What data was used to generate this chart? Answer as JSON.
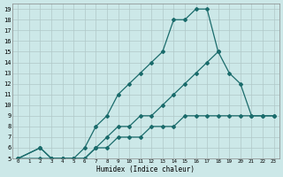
{
  "xlabel": "Humidex (Indice chaleur)",
  "bg_color": "#cce8e8",
  "grid_color": "#b0c8c8",
  "line_color": "#1a6b6b",
  "xlim": [
    -0.5,
    23.5
  ],
  "ylim": [
    5,
    19.5
  ],
  "xticks": [
    0,
    1,
    2,
    3,
    4,
    5,
    6,
    7,
    8,
    9,
    10,
    11,
    12,
    13,
    14,
    15,
    16,
    17,
    18,
    19,
    20,
    21,
    22,
    23
  ],
  "yticks": [
    5,
    6,
    7,
    8,
    9,
    10,
    11,
    12,
    13,
    14,
    15,
    16,
    17,
    18,
    19
  ],
  "lines": [
    {
      "x": [
        0,
        2,
        3,
        4,
        5,
        6,
        7,
        8,
        9,
        10,
        11,
        12,
        13,
        14,
        15,
        16,
        17,
        18
      ],
      "y": [
        5,
        6,
        5,
        5,
        5,
        6,
        8,
        9,
        11,
        12,
        13,
        14,
        15,
        18,
        18,
        19,
        19,
        15
      ]
    },
    {
      "x": [
        0,
        2,
        3,
        4,
        5,
        6,
        7,
        8,
        9,
        10,
        11,
        12,
        13,
        14,
        15,
        16,
        17,
        18,
        19,
        20,
        21,
        22,
        23
      ],
      "y": [
        5,
        6,
        5,
        5,
        5,
        5,
        6,
        7,
        8,
        8,
        9,
        9,
        10,
        11,
        12,
        13,
        14,
        15,
        13,
        12,
        9,
        9,
        9
      ]
    },
    {
      "x": [
        0,
        2,
        3,
        4,
        5,
        6,
        7,
        8,
        9,
        10,
        11,
        12,
        13,
        14,
        15,
        16,
        17,
        18,
        19,
        20,
        21,
        22,
        23
      ],
      "y": [
        5,
        5,
        5,
        5,
        5,
        5,
        6,
        6,
        7,
        7,
        7,
        8,
        8,
        8,
        9,
        9,
        9,
        9,
        9,
        9,
        9,
        9,
        9
      ]
    }
  ]
}
